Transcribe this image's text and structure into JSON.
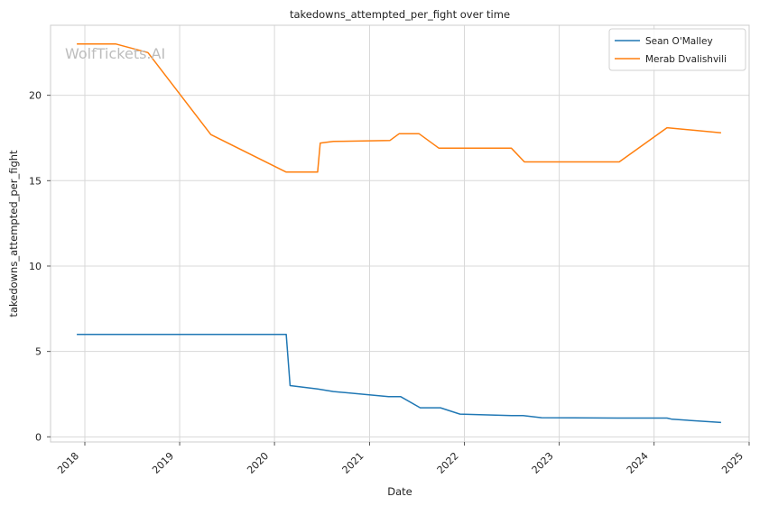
{
  "chart_data": {
    "type": "line",
    "title": "takedowns_attempted_per_fight over time",
    "xlabel": "Date",
    "ylabel": "takedowns_attempted_per_fight",
    "watermark": "WolfTickets.AI",
    "xlim": [
      "2017-08-22",
      "2025-01-01"
    ],
    "ylim": [
      -0.3,
      24.1
    ],
    "x_ticks": [
      "2018",
      "2019",
      "2020",
      "2021",
      "2022",
      "2023",
      "2024",
      "2025"
    ],
    "y_ticks": [
      0,
      5,
      10,
      15,
      20
    ],
    "grid": true,
    "legend_position": "top-right",
    "series": [
      {
        "name": "Sean O'Malley",
        "color": "#1f77b4",
        "points": [
          [
            "2017-12-01",
            6.0
          ],
          [
            "2020-02-15",
            6.0
          ],
          [
            "2020-03-01",
            3.0
          ],
          [
            "2020-06-15",
            2.8
          ],
          [
            "2020-08-15",
            2.65
          ],
          [
            "2021-03-15",
            2.35
          ],
          [
            "2021-05-01",
            2.35
          ],
          [
            "2021-07-15",
            1.7
          ],
          [
            "2021-10-01",
            1.7
          ],
          [
            "2021-12-15",
            1.33
          ],
          [
            "2022-07-01",
            1.25
          ],
          [
            "2022-08-15",
            1.25
          ],
          [
            "2022-10-25",
            1.12
          ],
          [
            "2023-08-15",
            1.1
          ],
          [
            "2024-02-20",
            1.1
          ],
          [
            "2024-03-10",
            1.03
          ],
          [
            "2024-09-15",
            0.84
          ]
        ]
      },
      {
        "name": "Merab Dvalishvili",
        "color": "#ff7f0e",
        "points": [
          [
            "2017-12-01",
            23.0
          ],
          [
            "2018-05-01",
            23.0
          ],
          [
            "2018-09-01",
            22.5
          ],
          [
            "2019-05-01",
            17.7
          ],
          [
            "2020-02-15",
            15.5
          ],
          [
            "2020-06-15",
            15.5
          ],
          [
            "2020-06-25",
            17.2
          ],
          [
            "2020-08-15",
            17.3
          ],
          [
            "2021-03-20",
            17.35
          ],
          [
            "2021-04-25",
            17.75
          ],
          [
            "2021-07-10",
            17.75
          ],
          [
            "2021-09-25",
            16.9
          ],
          [
            "2022-07-01",
            16.9
          ],
          [
            "2022-08-20",
            16.1
          ],
          [
            "2023-08-20",
            16.1
          ],
          [
            "2024-02-20",
            18.1
          ],
          [
            "2024-09-15",
            17.8
          ]
        ]
      }
    ]
  }
}
